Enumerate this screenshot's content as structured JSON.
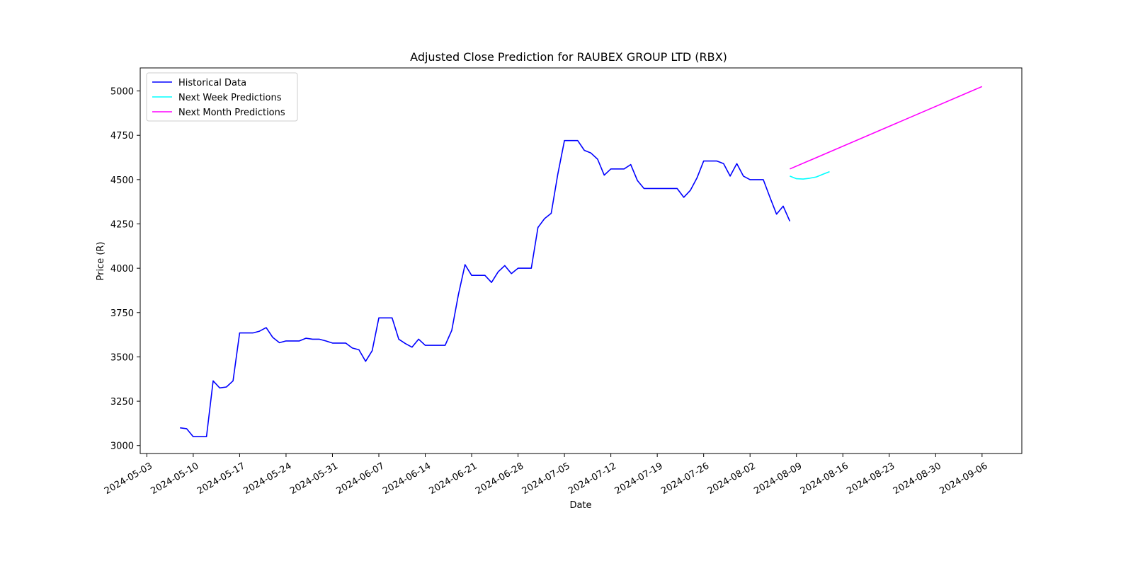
{
  "chart_data": {
    "type": "line",
    "title": "Adjusted Close Prediction for RAUBEX GROUP LTD (RBX)",
    "xlabel": "Date",
    "ylabel": "Price (R)",
    "xlim": [
      "2024-05-02",
      "2024-09-12"
    ],
    "ylim": [
      2955,
      5130
    ],
    "x_ticks": [
      "2024-05-03",
      "2024-05-10",
      "2024-05-17",
      "2024-05-24",
      "2024-05-31",
      "2024-06-07",
      "2024-06-14",
      "2024-06-21",
      "2024-06-28",
      "2024-07-05",
      "2024-07-12",
      "2024-07-19",
      "2024-07-26",
      "2024-08-02",
      "2024-08-09",
      "2024-08-16",
      "2024-08-23",
      "2024-08-30",
      "2024-09-06"
    ],
    "y_ticks": [
      3000,
      3250,
      3500,
      3750,
      4000,
      4250,
      4500,
      4750,
      5000
    ],
    "legend_position": "top-left",
    "grid": false,
    "series": [
      {
        "name": "Historical Data",
        "color": "#0000ff",
        "points": [
          [
            "2024-05-08",
            3100
          ],
          [
            "2024-05-09",
            3095
          ],
          [
            "2024-05-10",
            3050
          ],
          [
            "2024-05-11",
            3050
          ],
          [
            "2024-05-12",
            3050
          ],
          [
            "2024-05-13",
            3365
          ],
          [
            "2024-05-14",
            3325
          ],
          [
            "2024-05-15",
            3330
          ],
          [
            "2024-05-16",
            3365
          ],
          [
            "2024-05-17",
            3635
          ],
          [
            "2024-05-18",
            3635
          ],
          [
            "2024-05-19",
            3635
          ],
          [
            "2024-05-20",
            3645
          ],
          [
            "2024-05-21",
            3665
          ],
          [
            "2024-05-22",
            3610
          ],
          [
            "2024-05-23",
            3580
          ],
          [
            "2024-05-24",
            3590
          ],
          [
            "2024-05-25",
            3590
          ],
          [
            "2024-05-26",
            3590
          ],
          [
            "2024-05-27",
            3605
          ],
          [
            "2024-05-28",
            3600
          ],
          [
            "2024-05-29",
            3600
          ],
          [
            "2024-05-30",
            3590
          ],
          [
            "2024-05-31",
            3578
          ],
          [
            "2024-06-01",
            3578
          ],
          [
            "2024-06-02",
            3578
          ],
          [
            "2024-06-03",
            3550
          ],
          [
            "2024-06-04",
            3540
          ],
          [
            "2024-06-05",
            3475
          ],
          [
            "2024-06-06",
            3535
          ],
          [
            "2024-06-07",
            3720
          ],
          [
            "2024-06-08",
            3720
          ],
          [
            "2024-06-09",
            3720
          ],
          [
            "2024-06-10",
            3600
          ],
          [
            "2024-06-11",
            3575
          ],
          [
            "2024-06-12",
            3555
          ],
          [
            "2024-06-13",
            3600
          ],
          [
            "2024-06-14",
            3565
          ],
          [
            "2024-06-15",
            3565
          ],
          [
            "2024-06-16",
            3565
          ],
          [
            "2024-06-17",
            3565
          ],
          [
            "2024-06-18",
            3650
          ],
          [
            "2024-06-19",
            3850
          ],
          [
            "2024-06-20",
            4020
          ],
          [
            "2024-06-21",
            3960
          ],
          [
            "2024-06-22",
            3960
          ],
          [
            "2024-06-23",
            3960
          ],
          [
            "2024-06-24",
            3920
          ],
          [
            "2024-06-25",
            3980
          ],
          [
            "2024-06-26",
            4015
          ],
          [
            "2024-06-27",
            3970
          ],
          [
            "2024-06-28",
            4000
          ],
          [
            "2024-06-29",
            4000
          ],
          [
            "2024-06-30",
            4000
          ],
          [
            "2024-07-01",
            4230
          ],
          [
            "2024-07-02",
            4280
          ],
          [
            "2024-07-03",
            4310
          ],
          [
            "2024-07-04",
            4530
          ],
          [
            "2024-07-05",
            4720
          ],
          [
            "2024-07-06",
            4720
          ],
          [
            "2024-07-07",
            4720
          ],
          [
            "2024-07-08",
            4665
          ],
          [
            "2024-07-09",
            4650
          ],
          [
            "2024-07-10",
            4615
          ],
          [
            "2024-07-11",
            4525
          ],
          [
            "2024-07-12",
            4560
          ],
          [
            "2024-07-13",
            4560
          ],
          [
            "2024-07-14",
            4560
          ],
          [
            "2024-07-15",
            4585
          ],
          [
            "2024-07-16",
            4495
          ],
          [
            "2024-07-17",
            4450
          ],
          [
            "2024-07-18",
            4450
          ],
          [
            "2024-07-19",
            4450
          ],
          [
            "2024-07-20",
            4450
          ],
          [
            "2024-07-21",
            4450
          ],
          [
            "2024-07-22",
            4450
          ],
          [
            "2024-07-23",
            4400
          ],
          [
            "2024-07-24",
            4440
          ],
          [
            "2024-07-25",
            4510
          ],
          [
            "2024-07-26",
            4605
          ],
          [
            "2024-07-27",
            4605
          ],
          [
            "2024-07-28",
            4605
          ],
          [
            "2024-07-29",
            4590
          ],
          [
            "2024-07-30",
            4520
          ],
          [
            "2024-07-31",
            4590
          ],
          [
            "2024-08-01",
            4520
          ],
          [
            "2024-08-02",
            4500
          ],
          [
            "2024-08-03",
            4500
          ],
          [
            "2024-08-04",
            4500
          ],
          [
            "2024-08-05",
            4400
          ],
          [
            "2024-08-06",
            4305
          ],
          [
            "2024-08-07",
            4350
          ],
          [
            "2024-08-08",
            4265
          ]
        ]
      },
      {
        "name": "Next Week Predictions",
        "color": "#00ffff",
        "points": [
          [
            "2024-08-08",
            4520
          ],
          [
            "2024-08-09",
            4505
          ],
          [
            "2024-08-10",
            4503
          ],
          [
            "2024-08-11",
            4508
          ],
          [
            "2024-08-12",
            4515
          ],
          [
            "2024-08-13",
            4530
          ],
          [
            "2024-08-14",
            4545
          ]
        ]
      },
      {
        "name": "Next Month Predictions",
        "color": "#ff00ff",
        "points": [
          [
            "2024-08-08",
            4560
          ],
          [
            "2024-09-06",
            5025
          ]
        ]
      }
    ]
  }
}
